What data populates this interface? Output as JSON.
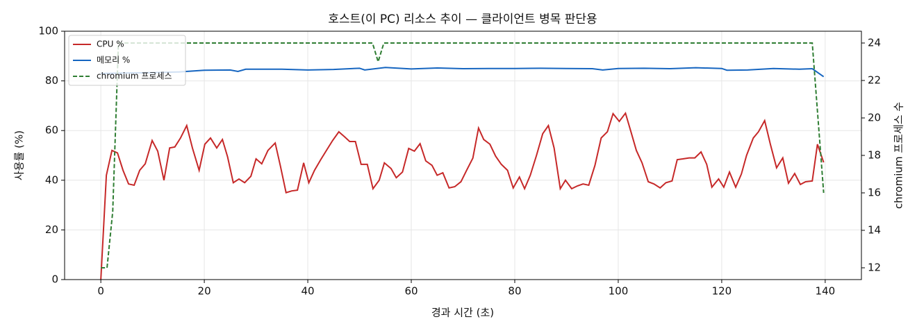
{
  "chart_data": {
    "type": "line",
    "title": "호스트(이 PC) 리소스 추이 — 클라이언트 병목 판단용",
    "xlabel": "경과 시간 (초)",
    "ylabel": "사용률 (%)",
    "y2label": "chromium 프로세스 수",
    "xlim": [
      -7,
      147
    ],
    "xticks": [
      0,
      20,
      40,
      60,
      80,
      100,
      120,
      140
    ],
    "ylim": [
      0,
      100
    ],
    "yticks": [
      0,
      20,
      40,
      60,
      80,
      100
    ],
    "y2lim": [
      11.37,
      24.63
    ],
    "y2ticks": [
      12,
      14,
      16,
      18,
      20,
      22,
      24
    ],
    "grid": true,
    "legend": "upper-left",
    "series": [
      {
        "name": "CPU %",
        "color": "#c62828",
        "dash": false,
        "x": [
          0,
          1.07,
          2.15,
          3.22,
          4.29,
          5.36,
          6.44,
          7.51,
          8.58,
          9.92,
          11.0,
          12.2,
          13.3,
          14.3,
          15.4,
          16.6,
          17.7,
          19.0,
          20.1,
          21.2,
          22.4,
          23.5,
          24.5,
          25.6,
          26.7,
          27.8,
          29.0,
          30.0,
          31.1,
          32.3,
          33.7,
          34.7,
          35.8,
          36.9,
          38.0,
          39.2,
          40.2,
          41.3,
          42.5,
          43.6,
          44.8,
          46.0,
          47.1,
          48.1,
          49.2,
          50.3,
          51.5,
          52.6,
          53.8,
          54.8,
          56.1,
          57.1,
          58.3,
          59.5,
          60.6,
          61.7,
          62.8,
          64.0,
          65.0,
          66.1,
          67.3,
          68.4,
          69.6,
          70.7,
          71.9,
          73.0,
          74.0,
          75.2,
          76.3,
          77.4,
          78.6,
          79.7,
          80.9,
          81.9,
          83.0,
          84.2,
          85.4,
          86.5,
          87.6,
          88.8,
          89.8,
          91.0,
          92.1,
          93.2,
          94.3,
          95.5,
          96.7,
          97.9,
          99.0,
          100.2,
          101.4,
          102.5,
          103.5,
          104.6,
          105.8,
          106.9,
          108.1,
          109.2,
          110.4,
          111.4,
          112.5,
          113.7,
          114.8,
          116.0,
          117.1,
          118.1,
          119.4,
          120.4,
          121.5,
          122.7,
          123.8,
          124.8,
          126.1,
          127.1,
          128.3,
          129.4,
          130.6,
          131.8,
          132.9,
          134.1,
          135.2,
          136.2,
          137.5,
          138.5,
          139.7
        ],
        "values": [
          0,
          42,
          52,
          51,
          44,
          38.5,
          38,
          44,
          46.6,
          56,
          51.7,
          40,
          53,
          53.4,
          57,
          62,
          53,
          44,
          54.5,
          57,
          53,
          56.4,
          49.4,
          39,
          40.5,
          39,
          41.6,
          48.6,
          46.6,
          52,
          55,
          45.8,
          35,
          35.7,
          36,
          47,
          39,
          44,
          48.3,
          52,
          56,
          59.5,
          57.5,
          55.6,
          55.6,
          46.4,
          46.4,
          36.6,
          40,
          47,
          44.7,
          41,
          43.3,
          52.8,
          51.7,
          54.7,
          47.8,
          46,
          42,
          43,
          36.9,
          37.4,
          39.4,
          44,
          48.9,
          61,
          56.4,
          54.5,
          49.7,
          46.4,
          44,
          36.9,
          41.3,
          36.6,
          42,
          50,
          58.7,
          62,
          53,
          36.6,
          40,
          36.6,
          37.7,
          38.5,
          38,
          46,
          57,
          59.5,
          66.8,
          63.7,
          67,
          59.2,
          52,
          47,
          39.4,
          38.5,
          36.9,
          39,
          39.7,
          48.3,
          48.6,
          49,
          49,
          51.4,
          46.4,
          37.2,
          40.5,
          37.2,
          43.3,
          37.2,
          42.5,
          50,
          57,
          59.5,
          64,
          54.5,
          45,
          49,
          38.8,
          42.7,
          38.3,
          39.4,
          39.7,
          54.5,
          47.2
        ]
      },
      {
        "name": "메모리 %",
        "color": "#1565c0",
        "dash": false,
        "x": [
          0,
          5,
          10,
          15,
          20,
          25,
          26.5,
          28,
          35,
          40,
          45,
          50,
          51,
          55,
          60,
          65,
          70,
          75,
          80,
          85,
          90,
          95,
          97,
          100,
          105,
          110,
          115,
          120,
          121,
          125,
          130,
          135,
          137.5,
          139.7
        ],
        "values": [
          83,
          83.2,
          83.3,
          83.6,
          84.3,
          84.4,
          83.8,
          84.7,
          84.7,
          84.4,
          84.6,
          85.1,
          84.4,
          85.4,
          84.8,
          85.2,
          84.9,
          85,
          85,
          85.1,
          85,
          84.9,
          84.4,
          85,
          85.1,
          84.9,
          85.3,
          85,
          84.3,
          84.4,
          85,
          84.7,
          84.9,
          81.7
        ]
      },
      {
        "name": "chromium 프로세스",
        "color": "#2e7d32",
        "dash": true,
        "axis": "y2",
        "x": [
          0,
          1.2,
          2.3,
          3.4,
          52.5,
          53.6,
          54.7,
          137.5,
          139.7
        ],
        "values": [
          12,
          12,
          15,
          24,
          24,
          23,
          24,
          24,
          16
        ]
      }
    ]
  }
}
